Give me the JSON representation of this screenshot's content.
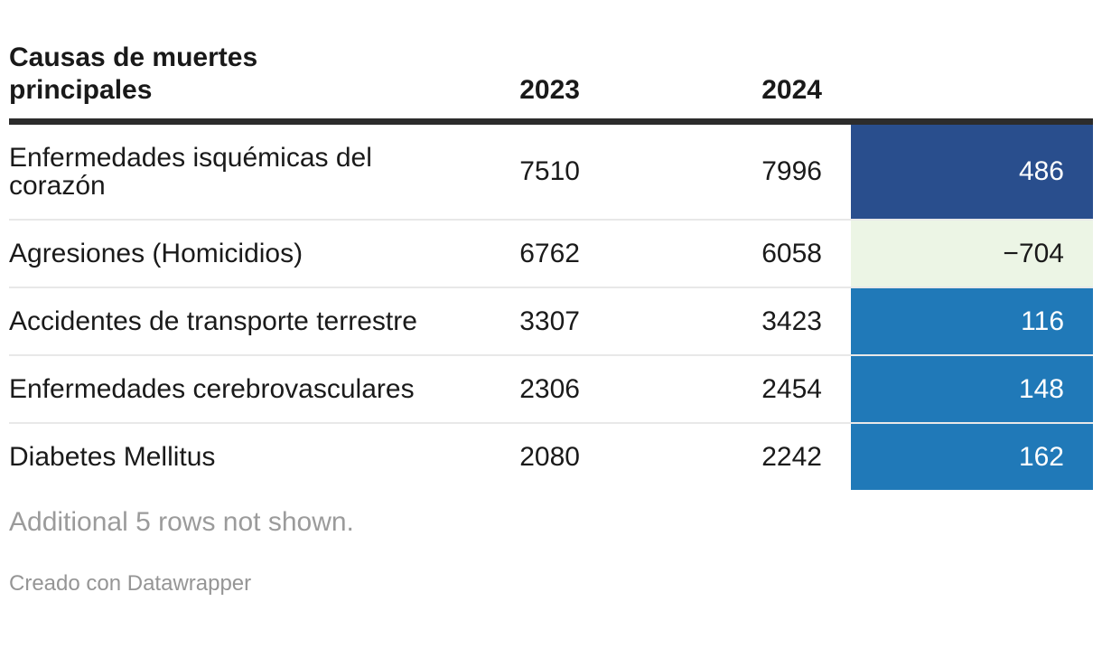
{
  "chart_data": {
    "type": "table",
    "title": "Causas de muertes principales",
    "columns": [
      "2023",
      "2024"
    ],
    "diff_column_note": "difference 2024 minus 2023, shown as colored heatmap cells",
    "rows": [
      {
        "label": "Enfermedades isquémicas del corazón",
        "y2023": "7510",
        "y2024": "7996",
        "diff": "486",
        "diff_bg": "#294e8d",
        "diff_fg": "#ffffff"
      },
      {
        "label": "Agresiones (Homicidios)",
        "y2023": "6762",
        "y2024": "6058",
        "diff": "−704",
        "diff_bg": "#ecf5e5",
        "diff_fg": "#1a1a1a"
      },
      {
        "label": "Accidentes de transporte terrestre",
        "y2023": "3307",
        "y2024": "3423",
        "diff": "116",
        "diff_bg": "#2079b8",
        "diff_fg": "#ffffff"
      },
      {
        "label": "Enfermedades cerebrovasculares",
        "y2023": "2306",
        "y2024": "2454",
        "diff": "148",
        "diff_bg": "#2079b8",
        "diff_fg": "#ffffff"
      },
      {
        "label": "Diabetes Mellitus",
        "y2023": "2080",
        "y2024": "2242",
        "diff": "162",
        "diff_bg": "#2079b8",
        "diff_fg": "#ffffff"
      }
    ],
    "colors": {
      "increase_strong": "#294e8d",
      "increase": "#2079b8",
      "decrease": "#ecf5e5",
      "header_rule": "#2c2c2c",
      "row_separator": "#e8e8e8"
    }
  },
  "footer": {
    "note": "Additional 5 rows not shown.",
    "credit": "Creado con Datawrapper"
  }
}
